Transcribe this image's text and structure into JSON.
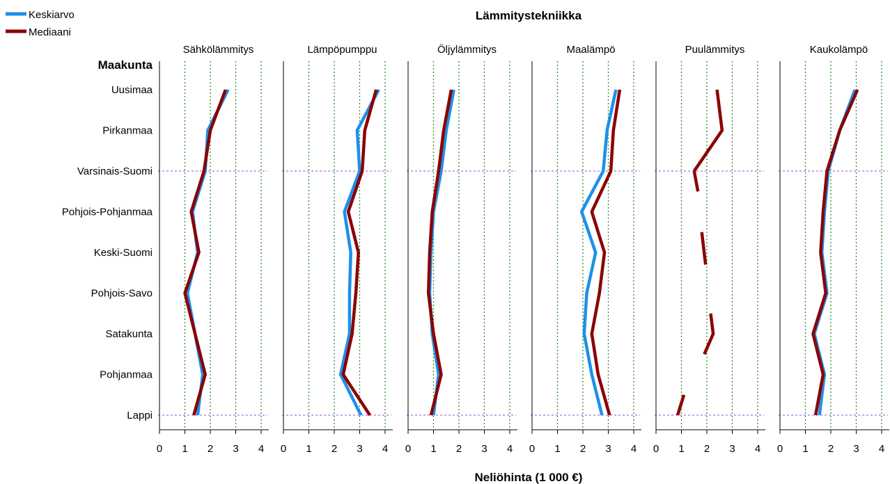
{
  "chart_data": {
    "type": "line",
    "title": "Lämmitystekniikka",
    "xlabel": "Neliöhinta (1 000 €)",
    "ylabel": "Maakunta",
    "xlim": [
      0,
      4.4
    ],
    "xticks": [
      "0",
      "1",
      "2",
      "3",
      "4"
    ],
    "grid": "vertical dotted at 1, 2, 3, 4",
    "legend_position": "top-left",
    "categories": [
      "Uusimaa",
      "Pirkanmaa",
      "Varsinais-Suomi",
      "Pohjois-Pohjanmaa",
      "Keski-Suomi",
      "Pohjois-Savo",
      "Satakunta",
      "Pohjanmaa",
      "Lappi"
    ],
    "reference_lines": [
      "Varsinais-Suomi",
      "Lappi"
    ],
    "series_names": [
      "Keskiarvo",
      "Mediaani"
    ],
    "series_colors": [
      "#1e90e8",
      "#8b0000"
    ],
    "reference_line_color": "#b06cf0",
    "grid_color": "#2e8b2e",
    "panels": [
      {
        "name": "Sähkölämmitys",
        "series": [
          {
            "name": "Keskiarvo",
            "values": [
              2.7,
              1.9,
              1.8,
              1.3,
              1.5,
              1.1,
              1.4,
              1.7,
              1.5
            ]
          },
          {
            "name": "Mediaani",
            "values": [
              2.6,
              2.0,
              1.75,
              1.25,
              1.55,
              1.0,
              1.4,
              1.8,
              1.35
            ]
          }
        ]
      },
      {
        "name": "Lämpöpumppu",
        "series": [
          {
            "name": "Keskiarvo",
            "values": [
              3.75,
              2.9,
              3.0,
              2.4,
              2.65,
              2.6,
              2.6,
              2.25,
              3.05
            ]
          },
          {
            "name": "Mediaani",
            "values": [
              3.65,
              3.2,
              3.1,
              2.55,
              2.95,
              2.85,
              2.7,
              2.35,
              3.4
            ]
          }
        ]
      },
      {
        "name": "Öljylämmitys",
        "series": [
          {
            "name": "Keskiarvo",
            "values": [
              1.8,
              1.5,
              1.3,
              1.0,
              0.9,
              0.85,
              0.95,
              1.2,
              1.0
            ]
          },
          {
            "name": "Mediaani",
            "values": [
              1.7,
              1.4,
              1.2,
              0.95,
              0.85,
              0.8,
              1.0,
              1.3,
              0.9
            ]
          }
        ]
      },
      {
        "name": "Maalämpö",
        "series": [
          {
            "name": "Keskiarvo",
            "values": [
              3.3,
              2.95,
              2.8,
              1.95,
              2.5,
              2.15,
              2.05,
              2.35,
              2.75
            ]
          },
          {
            "name": "Mediaani",
            "values": [
              3.45,
              3.2,
              3.1,
              2.35,
              2.85,
              2.65,
              2.35,
              2.6,
              3.05
            ]
          }
        ]
      },
      {
        "name": "Puulämmitys",
        "series": [
          {
            "name": "Keskiarvo",
            "values": [
              null,
              null,
              null,
              null,
              null,
              null,
              null,
              null,
              null
            ]
          },
          {
            "name": "Mediaani",
            "values": [
              2.4,
              2.6,
              1.55,
              null,
              1.85,
              null,
              2.2,
              null,
              0.85
            ],
            "segments": [
              [
                2.4,
                2.6,
                1.5,
                1.65
              ],
              null,
              [
                1.8,
                1.95
              ],
              null,
              [
                2.15,
                2.25,
                1.9
              ],
              null,
              [
                0.85,
                1.1
              ]
            ]
          }
        ]
      },
      {
        "name": "Kaukolämpö",
        "series": [
          {
            "name": "Keskiarvo",
            "values": [
              2.95,
              2.35,
              1.9,
              1.75,
              1.65,
              1.85,
              1.35,
              1.75,
              1.55
            ]
          },
          {
            "name": "Mediaani",
            "values": [
              3.05,
              2.35,
              1.85,
              1.7,
              1.6,
              1.8,
              1.3,
              1.7,
              1.4
            ]
          }
        ]
      }
    ]
  }
}
